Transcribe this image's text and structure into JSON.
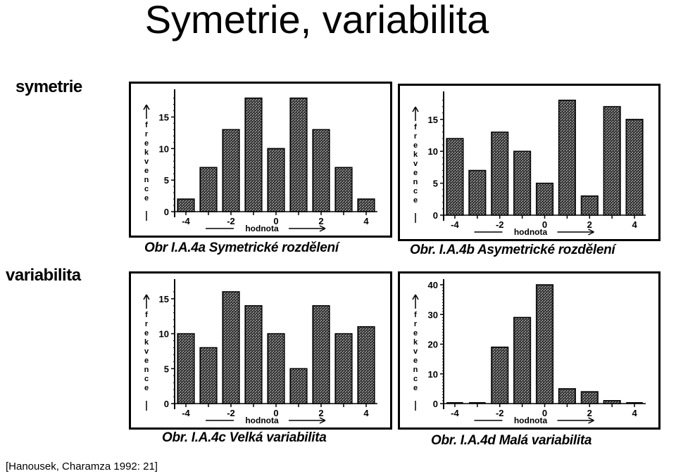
{
  "page": {
    "title": "Symetrie, variabilita",
    "section_labels": {
      "symmetry": "symetrie",
      "variability": "variabilita"
    },
    "citation": "[Hanousek, Charamza 1992: 21]"
  },
  "chart_data": [
    {
      "id": "a",
      "type": "bar",
      "caption": "Obr I.A.4a Symetrické rozdělení",
      "xlabel": "hodnota",
      "ylabel": "frekvence",
      "x": [
        -4,
        -3,
        -2,
        -1,
        0,
        1,
        2,
        3,
        4
      ],
      "values": [
        2,
        7,
        13,
        18,
        10,
        18,
        13,
        7,
        2
      ],
      "xticks": [
        -4,
        -2,
        0,
        2,
        4
      ],
      "yticks": [
        0,
        5,
        10,
        15
      ],
      "ylim": [
        0,
        18.5
      ],
      "grid": false
    },
    {
      "id": "b",
      "type": "bar",
      "caption": "Obr. I.A.4b Asymetrické rozdělení",
      "xlabel": "hodnota",
      "ylabel": "frekvence",
      "x": [
        -4,
        -3,
        -2,
        -1,
        0,
        1,
        2,
        3,
        4
      ],
      "values": [
        12,
        7,
        13,
        10,
        5,
        18,
        3,
        17,
        15
      ],
      "xticks": [
        -4,
        -2,
        0,
        2,
        4
      ],
      "yticks": [
        0,
        5,
        10,
        15
      ],
      "ylim": [
        0,
        18.5
      ],
      "grid": false
    },
    {
      "id": "c",
      "type": "bar",
      "caption": "Obr. I.A.4c Velká variabilita",
      "xlabel": "hodnota",
      "ylabel": "frekvence",
      "x": [
        -4,
        -3,
        -2,
        -1,
        0,
        1,
        2,
        3,
        4
      ],
      "values": [
        10,
        8,
        16,
        14,
        10,
        5,
        14,
        10,
        11
      ],
      "xticks": [
        -4,
        -2,
        0,
        2,
        4
      ],
      "yticks": [
        0,
        5,
        10,
        15
      ],
      "ylim": [
        0,
        17
      ],
      "grid": false
    },
    {
      "id": "d",
      "type": "bar",
      "caption": "Obr. I.A.4d Malá variabilita",
      "xlabel": "hodnota",
      "ylabel": "frekvence",
      "x": [
        -4,
        -3,
        -2,
        -1,
        0,
        1,
        2,
        3,
        4
      ],
      "values": [
        0,
        0,
        19,
        29,
        40,
        5,
        4,
        1,
        0
      ],
      "xticks": [
        -4,
        -2,
        0,
        2,
        4
      ],
      "yticks": [
        0,
        10,
        20,
        30,
        40
      ],
      "ylim": [
        0,
        40
      ],
      "grid": false
    }
  ]
}
